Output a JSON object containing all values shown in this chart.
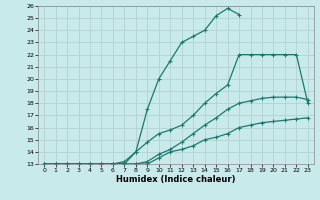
{
  "xlabel": "Humidex (Indice chaleur)",
  "xlim": [
    -0.5,
    23.5
  ],
  "ylim": [
    13,
    26
  ],
  "xticks": [
    0,
    1,
    2,
    3,
    4,
    5,
    6,
    7,
    8,
    9,
    10,
    11,
    12,
    13,
    14,
    15,
    16,
    17,
    18,
    19,
    20,
    21,
    22,
    23
  ],
  "yticks": [
    13,
    14,
    15,
    16,
    17,
    18,
    19,
    20,
    21,
    22,
    23,
    24,
    25,
    26
  ],
  "background_color": "#c8eaea",
  "grid_color": "#b0cccc",
  "line_color": "#1a7a6e",
  "lines": [
    {
      "x": [
        0,
        1,
        2,
        3,
        4,
        5,
        6,
        7,
        8,
        9,
        10,
        11,
        12,
        13,
        14,
        15,
        16,
        17,
        18,
        19,
        20,
        21,
        22,
        23
      ],
      "y": [
        13,
        13,
        13,
        13,
        13,
        13,
        13,
        13,
        13,
        13,
        13.5,
        14,
        14.2,
        14.5,
        15,
        15.2,
        15.5,
        16,
        16.2,
        16.4,
        16.5,
        16.6,
        16.7,
        16.8
      ]
    },
    {
      "x": [
        0,
        1,
        2,
        3,
        4,
        5,
        6,
        7,
        8,
        9,
        10,
        11,
        12,
        13,
        14,
        15,
        16,
        17,
        18,
        19,
        20,
        21,
        22,
        23
      ],
      "y": [
        13,
        13,
        13,
        13,
        13,
        13,
        13,
        13,
        13,
        13.2,
        13.8,
        14.2,
        14.8,
        15.5,
        16.2,
        16.8,
        17.5,
        18,
        18.2,
        18.4,
        18.5,
        18.5,
        18.5,
        18.3
      ]
    },
    {
      "x": [
        0,
        1,
        2,
        3,
        4,
        5,
        6,
        7,
        8,
        9,
        10,
        11,
        12,
        13,
        14,
        15,
        16,
        17,
        18,
        19,
        20,
        21,
        22,
        23
      ],
      "y": [
        13,
        13,
        13,
        13,
        13,
        13,
        13,
        13.2,
        14,
        14.8,
        15.5,
        15.8,
        16.2,
        17,
        18,
        18.8,
        19.5,
        22,
        22,
        22,
        22,
        22,
        22,
        18
      ]
    },
    {
      "x": [
        0,
        1,
        2,
        3,
        4,
        5,
        6,
        7,
        8,
        9,
        10,
        11,
        12,
        13,
        14,
        15,
        16,
        17
      ],
      "y": [
        13,
        13,
        13,
        13,
        13,
        13,
        13,
        13,
        14,
        17.5,
        20,
        21.5,
        23,
        23.5,
        24,
        25.2,
        25.8,
        25.3
      ]
    }
  ]
}
